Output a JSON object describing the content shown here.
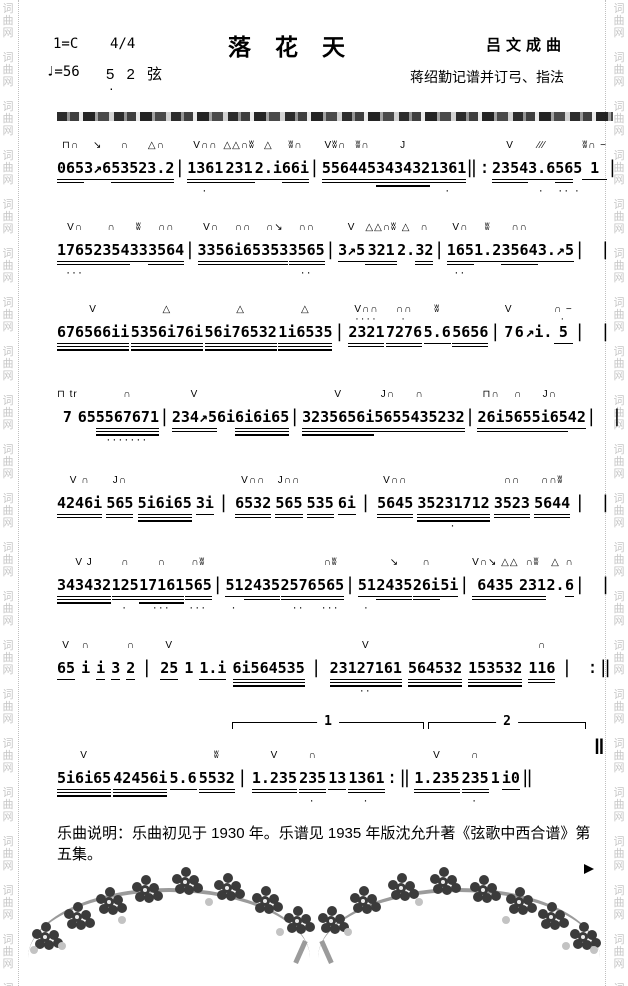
{
  "watermark": {
    "text": "词曲网",
    "color": "#c6c6c6"
  },
  "header": {
    "key": "1=C",
    "meter": "4/4",
    "title": "落花天",
    "composer": "吕文成曲",
    "tempo": "♩=56",
    "tuning": "5 2 弦",
    "tuning_low_dot": "·",
    "transcriber": "蒋绍勤记谱并订弓、指法"
  },
  "footer": {
    "note": "乐曲说明：乐曲初见于 1930 年。乐谱见 1935 年版沈允升著《弦歌中西合谱》第五集。"
  },
  "colors": {
    "ink": "#000000",
    "watermark": "#c6c6c6",
    "branch": "#9b9b9b",
    "blossom": "#3b3b3b",
    "bud": "#c3c3c3"
  },
  "music": {
    "volta": {
      "first": "1",
      "second": "2"
    },
    "final_barline": "‖",
    "lines": [
      [
        {
          "a": "⊓∩",
          "t": "065",
          "u": 2
        },
        {
          "a": "↘",
          "t": "3↗6",
          "u": 1
        },
        {
          "a": "∩",
          "t": "535",
          "u": 2
        },
        {
          "a": "△∩",
          "t": "23.2",
          "u": 2
        },
        {
          "t": "|",
          "bar": true
        },
        {
          "a": "V∩∩",
          "t": "1361",
          "u": 2,
          "b": "·"
        },
        {
          "a": "△△∩ʬ",
          "t": "231",
          "u": 2
        },
        {
          "a": "△",
          "t": "2.i",
          "u": 1
        },
        {
          "a": "ʬ∩",
          "t": "66i",
          "u": 2
        },
        {
          "t": "|",
          "bar": true
        },
        {
          "a": "Vʬ∩",
          "t": "556",
          "u": 2
        },
        {
          "a": "ʬ∩",
          "t": "445",
          "u": 2
        },
        {
          "a": "J",
          "t": "343432",
          "u": 3
        },
        {
          "t": "1361",
          "u": 2,
          "b": "·"
        },
        {
          "t": "‖:",
          "bar": true
        },
        {
          "a": "V",
          "t": "2354",
          "u": 2
        },
        {
          "a": "∕∕∕",
          "t": "3.6",
          "u": 1,
          "b": "·"
        },
        {
          "t": "56",
          "u": 2,
          "b": "··"
        },
        {
          "t": "5",
          "b": "·"
        },
        {
          "a": "ʬ∩ −",
          "t": "1",
          "u": 1
        },
        {
          "t": "| |",
          "bar": true
        }
      ],
      [
        {
          "a": "V∩",
          "t": "1765",
          "u": 2,
          "b": "···"
        },
        {
          "a": "∩",
          "t": "2354",
          "u": 2
        },
        {
          "a": "ʬ",
          "t": "33",
          "u": 1
        },
        {
          "a": "∩∩",
          "t": "3564",
          "u": 2
        },
        {
          "t": "|",
          "bar": true
        },
        {
          "a": "V∩",
          "t": "335",
          "u": 2
        },
        {
          "a": "∩∩",
          "t": "6i65",
          "u": 2
        },
        {
          "a": "∩↘",
          "t": "353",
          "u": 2
        },
        {
          "a": "∩∩",
          "t": "3565",
          "u": 2,
          "b": "··"
        },
        {
          "t": "|",
          "bar": true
        },
        {
          "a": "V",
          "t": "3↗5",
          "u": 1
        },
        {
          "a": "△△∩ʬ",
          "t": "321",
          "u": 2
        },
        {
          "a": "△",
          "t": "2."
        },
        {
          "a": "∩",
          "t": "32",
          "u": 2
        },
        {
          "t": "|",
          "bar": true
        },
        {
          "a": "V∩",
          "t": "165",
          "u": 2,
          "b": "··"
        },
        {
          "a": "ʬ",
          "t": "1.2",
          "u": 1
        },
        {
          "a": "∩∩",
          "t": "3564",
          "u": 2
        },
        {
          "t": "3.↗5",
          "u": 1
        },
        {
          "t": "| |",
          "bar": true
        }
      ],
      [
        {
          "a": "V",
          "t": "676566ii",
          "u": 3
        },
        {
          "a": "△",
          "t": "5356i76i",
          "u": 3
        },
        {
          "a": "△",
          "t": "56i76532",
          "u": 3
        },
        {
          "a": "△",
          "t": "1i6535",
          "u": 3
        },
        {
          "t": "|",
          "bar": true
        },
        {
          "a": "V∩∩",
          "d": "····",
          "t": "2321",
          "u": 2
        },
        {
          "a": "∩∩",
          "d": "·",
          "t": "7276",
          "u": 2
        },
        {
          "a": "ʬ",
          "t": "5.6",
          "u": 1
        },
        {
          "t": "5656",
          "u": 2
        },
        {
          "t": "|",
          "bar": true
        },
        {
          "a": "V",
          "t": "7"
        },
        {
          "t": "6"
        },
        {
          "t": "↗i."
        },
        {
          "a": "∩ −",
          "d": "·",
          "t": "5",
          "u": 1
        },
        {
          "t": "| |",
          "bar": true
        }
      ],
      [
        {
          "a": "⊓ tr",
          "t": "7"
        },
        {
          "t": "6"
        },
        {
          "t": "5"
        },
        {
          "a": "∩",
          "t": "5567671",
          "u": 3,
          "b": "·······"
        },
        {
          "t": "|",
          "bar": true
        },
        {
          "a": "V",
          "t": "234↗5",
          "u": 2
        },
        {
          "t": "6"
        },
        {
          "t": "i"
        },
        {
          "t": "6i6i65",
          "u": 3
        },
        {
          "t": "|",
          "bar": true
        },
        {
          "a": "V",
          "t": "3235656i",
          "u": 3
        },
        {
          "a": "J∩",
          "t": "565",
          "u": 2
        },
        {
          "a": "∩",
          "t": "5435",
          "u": 2
        },
        {
          "t": "232",
          "u": 2
        },
        {
          "t": "|",
          "bar": true
        },
        {
          "a": "⊓∩",
          "t": "26i",
          "u": 2
        },
        {
          "a": "∩",
          "t": "565",
          "u": 2
        },
        {
          "a": "J∩",
          "t": "5i65",
          "u": 2
        },
        {
          "t": "42",
          "u": 1
        },
        {
          "t": "| |",
          "bar": true
        }
      ],
      [
        {
          "a": "V ∩",
          "t": "4246i",
          "u": 2
        },
        {
          "a": "J∩",
          "t": "565",
          "u": 2
        },
        {
          "t": "5i6i65",
          "u": 3
        },
        {
          "t": "3i",
          "u": 1
        },
        {
          "t": "|",
          "bar": true
        },
        {
          "a": "V∩∩",
          "t": "6532",
          "u": 2
        },
        {
          "a": "J∩∩",
          "t": "565",
          "u": 2
        },
        {
          "t": "535",
          "u": 2
        },
        {
          "t": "6i",
          "u": 1
        },
        {
          "t": "|",
          "bar": true
        },
        {
          "a": "V∩∩",
          "t": "5645",
          "u": 2
        },
        {
          "t": "35231712",
          "u": 3,
          "b": "·"
        },
        {
          "a": "∩∩",
          "t": "3523",
          "u": 2
        },
        {
          "a": "∩∩ʬ",
          "t": "5644",
          "u": 2
        },
        {
          "t": "| |",
          "bar": true
        }
      ],
      [
        {
          "a": "V J",
          "t": "343432",
          "u": 3
        },
        {
          "a": "∩",
          "t": "125",
          "u": 2,
          "b": "·"
        },
        {
          "a": "∩",
          "t": "17161",
          "u": 3,
          "b": "···"
        },
        {
          "a": "∩ʬ",
          "t": "565",
          "u": 2,
          "b": "···"
        },
        {
          "t": "|",
          "bar": true
        },
        {
          "t": "51",
          "u": 1,
          "b": "·"
        },
        {
          "t": "2435",
          "u": 2
        },
        {
          "t": "2576",
          "u": 2,
          "b": "··"
        },
        {
          "a": "∩ʬ",
          "t": "565",
          "u": 2,
          "b": "···"
        },
        {
          "t": "|",
          "bar": true
        },
        {
          "t": "51",
          "u": 1,
          "b": "·"
        },
        {
          "a": "↘",
          "t": "2435",
          "u": 2
        },
        {
          "a": "∩",
          "t": "26i",
          "u": 2
        },
        {
          "t": "5i",
          "u": 1
        },
        {
          "t": "|",
          "bar": true
        },
        {
          "a": "V∩↘ △△",
          "t": "6435",
          "u": 2
        },
        {
          "a": "∩ʬ",
          "t": "231",
          "u": 2
        },
        {
          "a": "△",
          "t": "2."
        },
        {
          "a": "∩",
          "t": "6",
          "u": 1
        },
        {
          "t": "| |",
          "bar": true
        }
      ],
      [
        {
          "a": "V",
          "t": "65",
          "u": 1
        },
        {
          "a": "∩",
          "t": "i"
        },
        {
          "t": "i",
          "u": 1
        },
        {
          "t": "3",
          "u": 1
        },
        {
          "a": "∩",
          "t": "2",
          "u": 1
        },
        {
          "t": "|",
          "bar": true
        },
        {
          "a": "V",
          "t": "25",
          "u": 1
        },
        {
          "t": "1"
        },
        {
          "t": "1.i",
          "u": 1
        },
        {
          "t": "6i564535",
          "u": 3
        },
        {
          "t": "|",
          "bar": true
        },
        {
          "a": "V",
          "t": "23127161",
          "u": 3,
          "b": "··"
        },
        {
          "t": "564532",
          "u": 3
        },
        {
          "t": "153532",
          "u": 3
        },
        {
          "a": "∩",
          "t": "116",
          "u": 2
        },
        {
          "t": "| :‖",
          "bar": true
        }
      ],
      [
        {
          "a": "V",
          "t": "5i6i65",
          "u": 3
        },
        {
          "t": "42456i",
          "u": 3
        },
        {
          "t": "5.6",
          "u": 1
        },
        {
          "a": "ʬ",
          "t": "5532",
          "u": 2
        },
        {
          "t": "|",
          "bar": true
        },
        {
          "a": "V",
          "t": "1.235",
          "u": 2
        },
        {
          "a": "∩",
          "t": "235",
          "u": 2,
          "b": "·"
        },
        {
          "t": "13",
          "u": 1
        },
        {
          "t": "1361",
          "u": 2,
          "b": "·"
        },
        {
          "t": ":‖",
          "bar": true
        },
        {
          "a": "V",
          "t": "1.235",
          "u": 2
        },
        {
          "a": "∩",
          "t": "235",
          "u": 2,
          "b": "·"
        },
        {
          "t": "1"
        },
        {
          "t": "i0",
          "u": 1
        },
        {
          "t": "‖",
          "bar": true
        }
      ]
    ]
  }
}
